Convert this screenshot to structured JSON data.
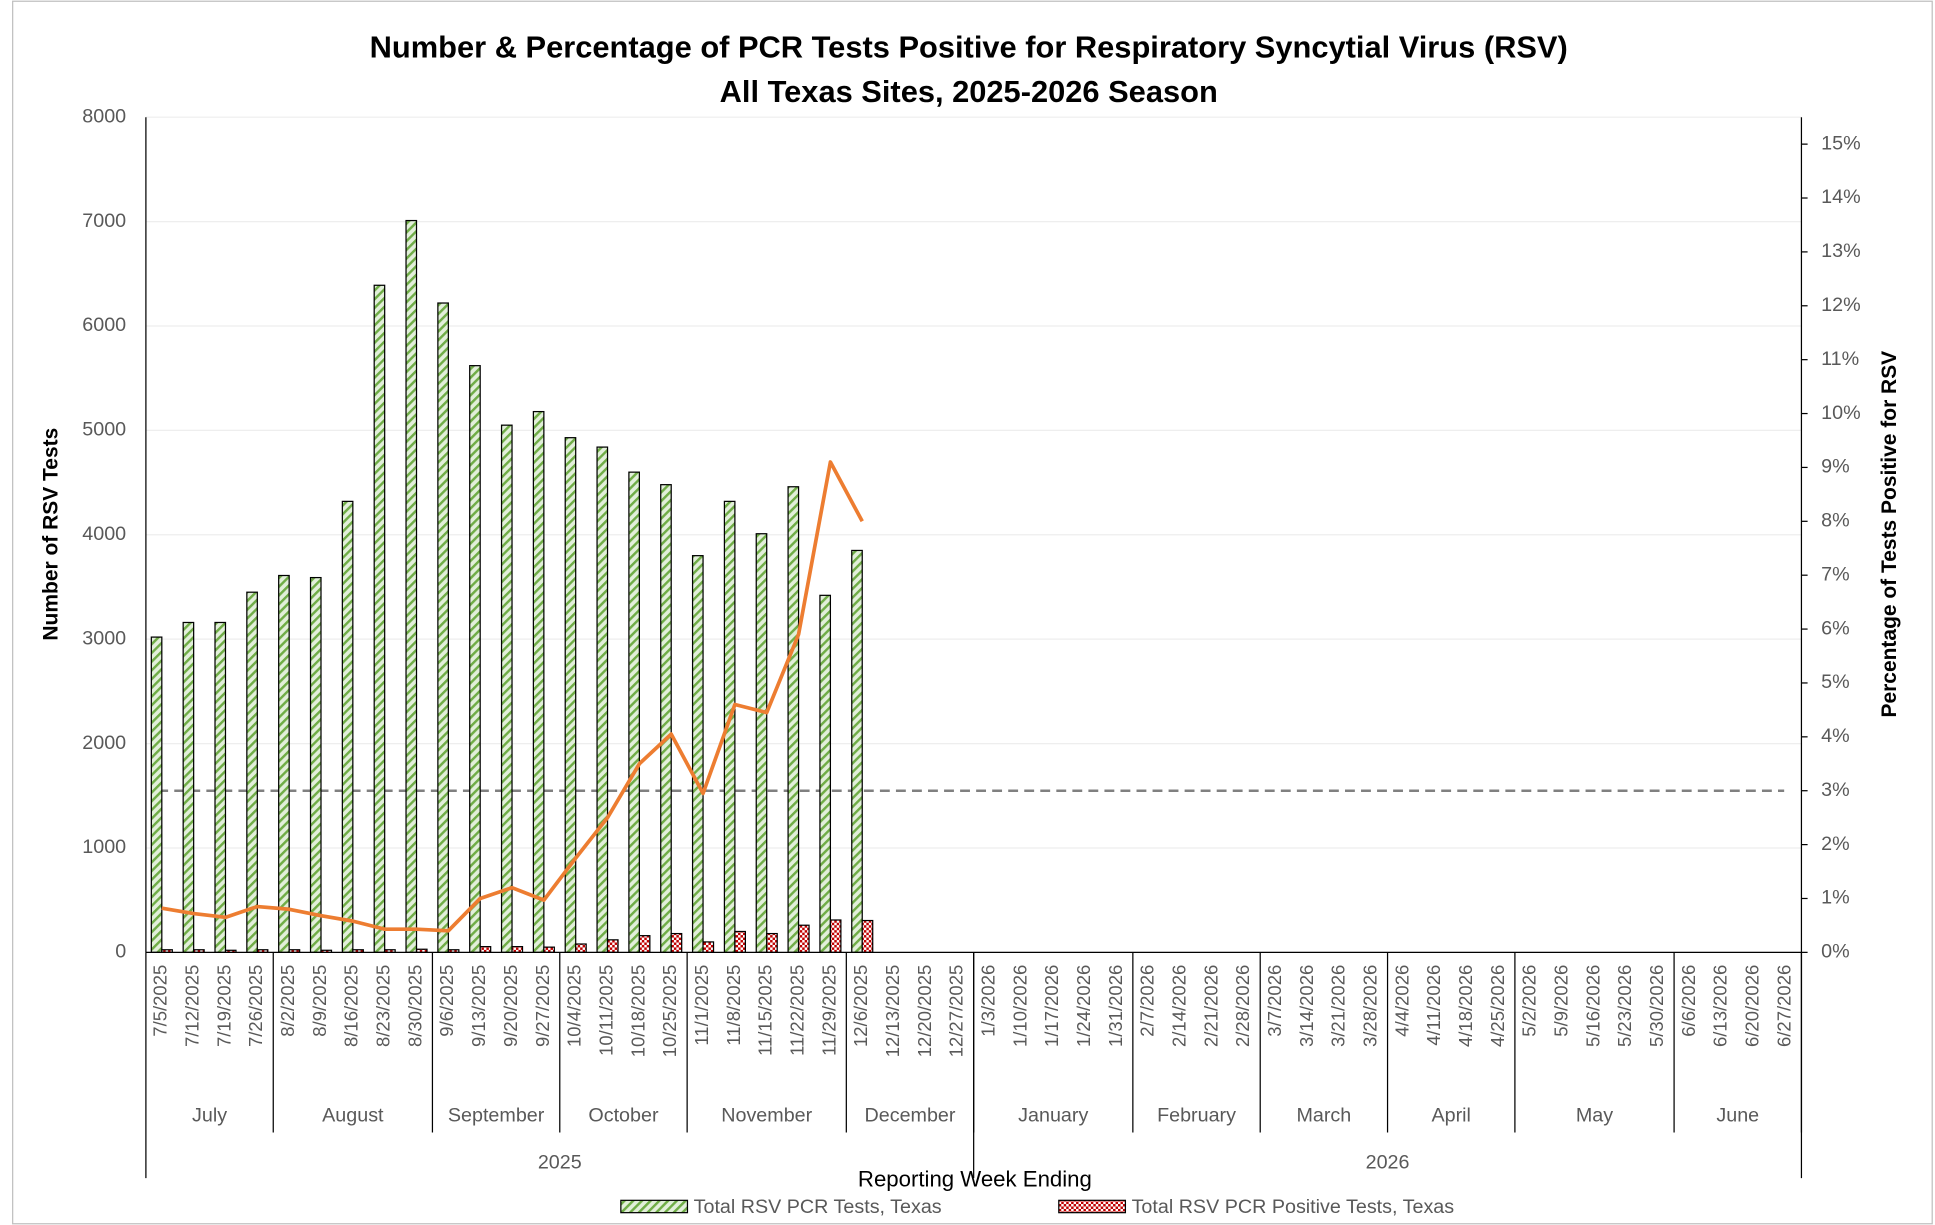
{
  "chart_data": {
    "type": "bar",
    "title": "Number & Percentage of PCR Tests Positive for Respiratory Syncytial Virus (RSV)",
    "subtitle": "All Texas Sites, 2025-2026 Season",
    "y_label": "Number of RSV Tests",
    "y2_label": "Percentage of Tests Positive for RSV",
    "x_label": "Reporting Week Ending",
    "categories": [
      "7/5/2025",
      "7/12/2025",
      "7/19/2025",
      "7/26/2025",
      "8/2/2025",
      "8/9/2025",
      "8/16/2025",
      "8/23/2025",
      "8/30/2025",
      "9/6/2025",
      "9/13/2025",
      "9/20/2025",
      "9/27/2025",
      "10/4/2025",
      "10/11/2025",
      "10/18/2025",
      "10/25/2025",
      "11/1/2025",
      "11/8/2025",
      "11/15/2025",
      "11/22/2025",
      "11/29/2025",
      "12/6/2025",
      "12/13/2025",
      "12/20/2025",
      "12/27/2025",
      "1/3/2026",
      "1/10/2026",
      "1/17/2026",
      "1/24/2026",
      "1/31/2026",
      "2/7/2026",
      "2/14/2026",
      "2/21/2026",
      "2/28/2026",
      "3/7/2026",
      "3/14/2026",
      "3/21/2026",
      "3/28/2026",
      "4/4/2026",
      "4/11/2026",
      "4/18/2026",
      "4/25/2026",
      "5/2/2026",
      "5/9/2026",
      "5/16/2026",
      "5/23/2026",
      "5/30/2026",
      "6/6/2026",
      "6/13/2026",
      "6/20/2026",
      "6/27/2026"
    ],
    "month_labels": [
      "July",
      "August",
      "September",
      "October",
      "November",
      "December",
      "January",
      "February",
      "March",
      "April",
      "May",
      "June"
    ],
    "year_labels": [
      "2025",
      "2026"
    ],
    "series": [
      {
        "name": "Total RSV PCR Tests, Texas",
        "color": "#70ad47",
        "pattern": "hatch",
        "values": [
          3020,
          3160,
          3160,
          3450,
          3610,
          3590,
          4320,
          6390,
          7010,
          6220,
          5620,
          5050,
          5180,
          4930,
          4840,
          4600,
          4480,
          3800,
          4320,
          4010,
          4460,
          3420,
          3850,
          null,
          null,
          null,
          null,
          null,
          null,
          null,
          null,
          null,
          null,
          null,
          null,
          null,
          null,
          null,
          null,
          null,
          null,
          null,
          null,
          null,
          null,
          null,
          null,
          null,
          null,
          null,
          null,
          null
        ]
      },
      {
        "name": "Total RSV PCR Positive Tests, Texas",
        "color": "#c00000",
        "pattern": "checker",
        "values": [
          25,
          25,
          20,
          25,
          25,
          20,
          25,
          25,
          30,
          25,
          55,
          55,
          50,
          80,
          120,
          160,
          180,
          100,
          200,
          180,
          260,
          310,
          305,
          null,
          null,
          null,
          null,
          null,
          null,
          null,
          null,
          null,
          null,
          null,
          null,
          null,
          null,
          null,
          null,
          null,
          null,
          null,
          null,
          null,
          null,
          null,
          null,
          null,
          null,
          null,
          null,
          null
        ]
      },
      {
        "type": "line",
        "axis": "y2",
        "color": "#ed7d31",
        "values": [
          0.82,
          0.72,
          0.65,
          0.85,
          0.8,
          0.68,
          0.58,
          0.43,
          0.43,
          0.4,
          1.0,
          1.2,
          0.97,
          1.75,
          2.5,
          3.5,
          4.05,
          2.95,
          4.6,
          4.45,
          5.9,
          9.1,
          8.0,
          null,
          null,
          null,
          null,
          null,
          null,
          null,
          null,
          null,
          null,
          null,
          null,
          null,
          null,
          null,
          null,
          null,
          null,
          null,
          null,
          null,
          null,
          null,
          null,
          null,
          null,
          null,
          null,
          null
        ]
      }
    ],
    "reference_line": 3,
    "reference_color": "#808080",
    "ylim": [
      0,
      8000
    ],
    "yticks": [
      0,
      1000,
      2000,
      3000,
      4000,
      5000,
      6000,
      7000,
      8000
    ],
    "y2lim": [
      0,
      15.5
    ],
    "y2ticks": [
      {
        "value": 0,
        "label": "0%"
      },
      {
        "value": 1,
        "label": "1%"
      },
      {
        "value": 2,
        "label": "2%"
      },
      {
        "value": 3,
        "label": "3%"
      },
      {
        "value": 4,
        "label": "4%"
      },
      {
        "value": 5,
        "label": "5%"
      },
      {
        "value": 6,
        "label": "6%"
      },
      {
        "value": 7,
        "label": "7%"
      },
      {
        "value": 8,
        "label": "8%"
      },
      {
        "value": 9,
        "label": "9%"
      },
      {
        "value": 10,
        "label": "10%"
      },
      {
        "value": 11,
        "label": "11%"
      },
      {
        "value": 12,
        "label": "12%"
      },
      {
        "value": 13,
        "label": "13%"
      },
      {
        "value": 14,
        "label": "14%"
      },
      {
        "value": 15,
        "label": "15%"
      }
    ],
    "grid": true,
    "legend": "bottom"
  }
}
